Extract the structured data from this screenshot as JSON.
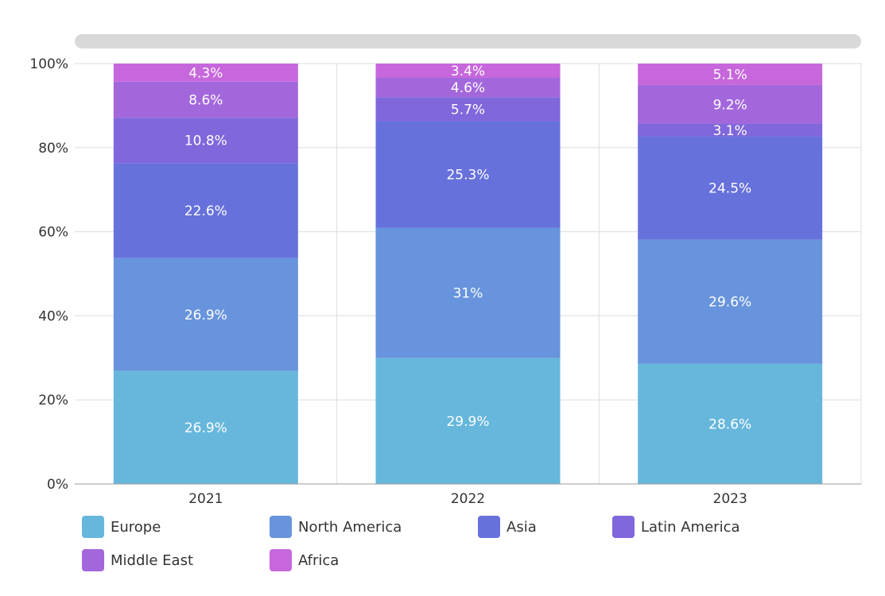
{
  "chart_data": {
    "type": "bar",
    "stacked": true,
    "normalized": true,
    "categories": [
      "2021",
      "2022",
      "2023"
    ],
    "series": [
      {
        "name": "Europe",
        "color": "#67b7dc",
        "values": [
          26.9,
          29.9,
          28.6
        ]
      },
      {
        "name": "North America",
        "color": "#6794dc",
        "values": [
          26.9,
          31,
          29.6
        ]
      },
      {
        "name": "Asia",
        "color": "#6771dc",
        "values": [
          22.6,
          25.3,
          24.5
        ]
      },
      {
        "name": "Latin America",
        "color": "#8067dc",
        "values": [
          10.8,
          5.7,
          3.1
        ]
      },
      {
        "name": "Middle East",
        "color": "#a367dc",
        "values": [
          8.6,
          4.6,
          9.2
        ]
      },
      {
        "name": "Africa",
        "color": "#c767dc",
        "values": [
          4.3,
          3.4,
          5.1
        ]
      }
    ],
    "data_labels": [
      [
        "26.9%",
        "29.9%",
        "28.6%"
      ],
      [
        "26.9%",
        "31%",
        "29.6%"
      ],
      [
        "22.6%",
        "25.3%",
        "24.5%"
      ],
      [
        "10.8%",
        "5.7%",
        "3.1%"
      ],
      [
        "8.6%",
        "4.6%",
        "9.2%"
      ],
      [
        "4.3%",
        "3.4%",
        "5.1%"
      ]
    ],
    "y_ticks": [
      "0%",
      "20%",
      "40%",
      "60%",
      "80%",
      "100%"
    ],
    "ylim": [
      0,
      100
    ],
    "grid": true,
    "legend_position": "bottom",
    "scrollbar": "top"
  }
}
